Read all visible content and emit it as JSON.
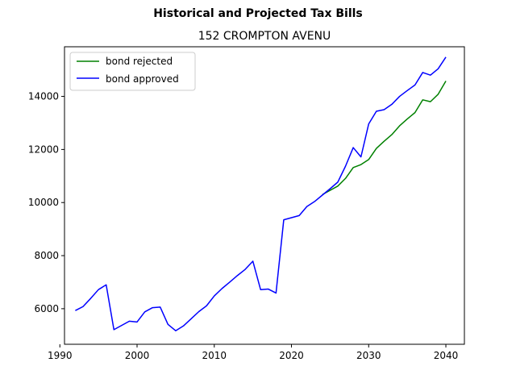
{
  "chart_data": {
    "type": "line",
    "title": "Historical and Projected Tax Bills",
    "subtitle": "152 CROMPTON AVENU",
    "xlabel": "",
    "ylabel": "",
    "xlim": [
      1990.6,
      2042.4
    ],
    "ylim": [
      4660,
      15870
    ],
    "xticks": [
      1990,
      2000,
      2010,
      2020,
      2030,
      2040
    ],
    "yticks": [
      6000,
      8000,
      10000,
      12000,
      14000
    ],
    "grid": false,
    "legend": "top-left",
    "series": [
      {
        "name": "bond rejected",
        "color": "#008000",
        "x": [
          2024,
          2025,
          2026,
          2027,
          2028,
          2029,
          2030,
          2031,
          2032,
          2033,
          2034,
          2035,
          2036,
          2037,
          2038,
          2039,
          2040
        ],
        "y": [
          10300,
          10460,
          10620,
          10910,
          11320,
          11430,
          11620,
          12040,
          12310,
          12560,
          12890,
          13150,
          13390,
          13870,
          13800,
          14080,
          14580
        ]
      },
      {
        "name": "bond approved",
        "color": "#0000ff",
        "x": [
          1992,
          1993,
          1994,
          1995,
          1996,
          1997,
          1998,
          1999,
          2000,
          2001,
          2002,
          2003,
          2004,
          2005,
          2006,
          2007,
          2008,
          2009,
          2010,
          2011,
          2012,
          2013,
          2014,
          2015,
          2016,
          2017,
          2018,
          2019,
          2020,
          2021,
          2022,
          2023,
          2024,
          2025,
          2026,
          2027,
          2028,
          2029,
          2030,
          2031,
          2032,
          2033,
          2034,
          2035,
          2036,
          2037,
          2038,
          2039,
          2040
        ],
        "y": [
          5930,
          6080,
          6390,
          6720,
          6900,
          5210,
          5370,
          5530,
          5500,
          5880,
          6040,
          6060,
          5410,
          5170,
          5350,
          5620,
          5890,
          6110,
          6480,
          6760,
          7000,
          7250,
          7480,
          7790,
          6720,
          6740,
          6590,
          9350,
          9430,
          9510,
          9850,
          10040,
          10280,
          10520,
          10770,
          11370,
          12070,
          11720,
          12960,
          13440,
          13500,
          13700,
          14000,
          14220,
          14430,
          14900,
          14800,
          15040,
          15480
        ]
      }
    ]
  }
}
